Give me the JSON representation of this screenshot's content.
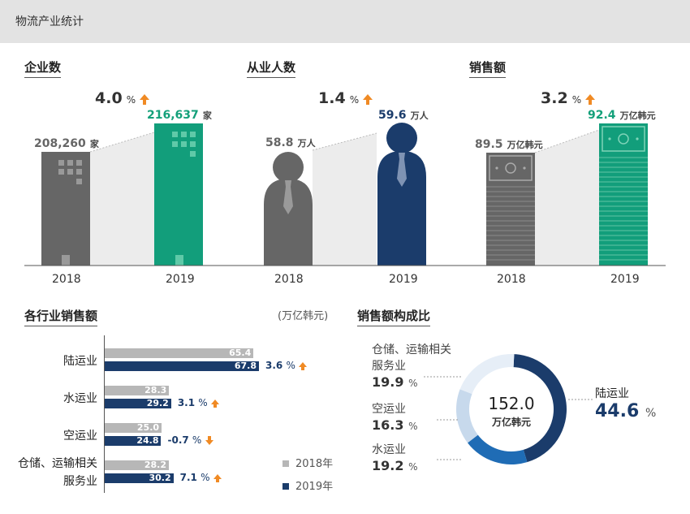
{
  "header": {
    "title": "物流产业统计"
  },
  "colors": {
    "gray_2018": "#666666",
    "green_2019": "#129e7b",
    "navy_2019": "#1b3c6b",
    "accent_up": "#f08a24",
    "bar_2018": "#b7b7b7"
  },
  "kpis": [
    {
      "title": "企业数",
      "growth": "4.0",
      "growth_unit": "%",
      "direction": "up",
      "v2018": "208,260",
      "v2019": "216,637",
      "unit": "家",
      "y2018": "2018",
      "y2019": "2019",
      "icon": "building-icon"
    },
    {
      "title": "从业人数",
      "growth": "1.4",
      "growth_unit": "%",
      "direction": "up",
      "v2018": "58.8",
      "v2019": "59.6",
      "unit": "万人",
      "y2018": "2018",
      "y2019": "2019",
      "icon": "person-icon"
    },
    {
      "title": "销售额",
      "growth": "3.2",
      "growth_unit": "%",
      "direction": "up",
      "v2018": "89.5",
      "v2019": "92.4",
      "unit": "万亿韩元",
      "y2018": "2018",
      "y2019": "2019",
      "icon": "banknote-stack-icon"
    }
  ],
  "chart_data": [
    {
      "type": "bar",
      "title": "各行业销售额",
      "unit_note": "(万亿韩元)",
      "categories": [
        "陆运业",
        "水运业",
        "空运业",
        "仓储、运输相关服务业"
      ],
      "category_lines": [
        [
          "陆运业"
        ],
        [
          "水运业"
        ],
        [
          "空运业"
        ],
        [
          "仓储、运输相关",
          "服务业"
        ]
      ],
      "series": [
        {
          "name": "2018年",
          "values": [
            65.4,
            28.3,
            25.0,
            28.2
          ],
          "labels": [
            "65.4",
            "28.3",
            "25.0",
            "28.2"
          ]
        },
        {
          "name": "2019年",
          "values": [
            67.8,
            29.2,
            24.8,
            30.2
          ],
          "labels": [
            "67.8",
            "29.2",
            "24.8",
            "30.2"
          ]
        }
      ],
      "growth": [
        {
          "value": "3.6",
          "unit": "%",
          "direction": "up"
        },
        {
          "value": "3.1",
          "unit": "%",
          "direction": "up"
        },
        {
          "value": "-0.7",
          "unit": "%",
          "direction": "down"
        },
        {
          "value": "7.1",
          "unit": "%",
          "direction": "up"
        }
      ],
      "xlim": [
        0,
        80
      ]
    },
    {
      "type": "pie",
      "title": "销售额构成比",
      "center_value": "152.0",
      "center_unit": "万亿韩元",
      "slices": [
        {
          "name": "陆运业",
          "value": 44.6,
          "label": "44.6",
          "unit": "%",
          "color": "#1b3c6b"
        },
        {
          "name": "水运业",
          "value": 19.2,
          "label": "19.2",
          "unit": "%",
          "color": "#1f6cb5"
        },
        {
          "name": "空运业",
          "value": 16.3,
          "label": "16.3",
          "unit": "%",
          "color": "#c7d9ec"
        },
        {
          "name": "仓储、运输相关服务业",
          "name_lines": [
            "仓储、运输相关",
            "服务业"
          ],
          "value": 19.9,
          "label": "19.9",
          "unit": "%",
          "color": "#e6eef7"
        }
      ]
    }
  ]
}
